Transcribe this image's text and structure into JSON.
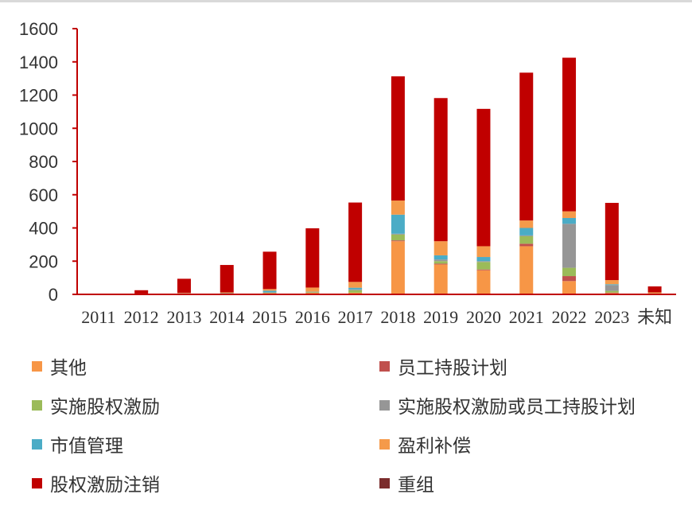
{
  "chart_data": {
    "type": "bar",
    "stacked": true,
    "categories": [
      "2011",
      "2012",
      "2013",
      "2014",
      "2015",
      "2016",
      "2017",
      "2018",
      "2019",
      "2020",
      "2021",
      "2022",
      "2023",
      "未知"
    ],
    "ylim": [
      0,
      1600
    ],
    "yticks": [
      0,
      200,
      400,
      600,
      800,
      1000,
      1200,
      1400,
      1600
    ],
    "grid": false,
    "legend_position": "bottom",
    "series": [
      {
        "name": "其他",
        "color": "#f79646",
        "values": [
          0,
          2,
          3,
          5,
          8,
          10,
          10,
          320,
          180,
          145,
          290,
          80,
          8,
          4
        ]
      },
      {
        "name": "员工持股计划",
        "color": "#c0504d",
        "values": [
          0,
          0,
          0,
          0,
          0,
          0,
          0,
          5,
          5,
          5,
          15,
          30,
          3,
          0
        ]
      },
      {
        "name": "实施股权激励",
        "color": "#9bbb59",
        "values": [
          0,
          0,
          0,
          0,
          2,
          2,
          15,
          35,
          15,
          45,
          45,
          50,
          10,
          2
        ]
      },
      {
        "name": "实施股权激励或员工持股计划",
        "color": "#969696",
        "values": [
          0,
          0,
          0,
          0,
          2,
          2,
          5,
          5,
          10,
          5,
          5,
          265,
          35,
          0
        ]
      },
      {
        "name": "市值管理",
        "color": "#4bacc6",
        "values": [
          0,
          0,
          3,
          2,
          10,
          2,
          10,
          115,
          25,
          25,
          45,
          35,
          5,
          0
        ]
      },
      {
        "name": "盈利补偿",
        "color": "#f59a4a",
        "values": [
          0,
          3,
          3,
          5,
          10,
          25,
          35,
          85,
          85,
          65,
          45,
          40,
          25,
          6
        ]
      },
      {
        "name": "股权激励注销",
        "color": "#c00000",
        "values": [
          0,
          20,
          85,
          165,
          225,
          357,
          478,
          748,
          862,
          827,
          890,
          925,
          465,
          36
        ]
      },
      {
        "name": "重组",
        "color": "#7b2c2c",
        "values": [
          0,
          0,
          0,
          0,
          0,
          0,
          0,
          0,
          0,
          0,
          0,
          0,
          0,
          0
        ]
      }
    ]
  }
}
